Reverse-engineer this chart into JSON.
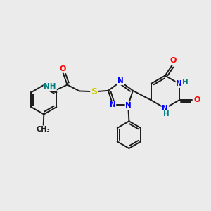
{
  "bg_color": "#ebebeb",
  "atom_colors": {
    "C": "#1a1a1a",
    "N": "#0000ff",
    "O": "#ff0000",
    "S": "#cccc00",
    "H": "#008080"
  },
  "bond_color": "#1a1a1a",
  "bond_width": 1.4
}
